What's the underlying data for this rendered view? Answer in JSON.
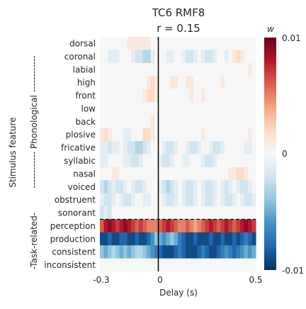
{
  "chart_data": {
    "type": "heatmap",
    "title_line1": "TC6 RMF8",
    "title_line2": "r = 0.15",
    "xlabel": "Delay (s)",
    "ylabel": "Stimulus feature",
    "x_range": [
      -0.3,
      0.5
    ],
    "x_ticks": [
      "-0.3",
      "0",
      "0.5"
    ],
    "group_labels": {
      "phonological": "------------ Phonological ------------",
      "task": "-Task-related-"
    },
    "rows": [
      "dorsal",
      "coronal",
      "labial",
      "high",
      "front",
      "low",
      "back",
      "plosive",
      "fricative",
      "syllabic",
      "nasal",
      "voiced",
      "obstruent",
      "sonorant",
      "perception",
      "production",
      "consistent",
      "inconsistent"
    ],
    "colorbar": {
      "label": "w",
      "max_label": "0.01",
      "zero_label": "0",
      "min_label": "-0.01",
      "range": [
        -0.01,
        0.01
      ],
      "colormap": [
        "#053061",
        "#2166ac",
        "#4393c3",
        "#92c5de",
        "#d1e5f0",
        "#f7f7f7",
        "#fddbc7",
        "#f4a582",
        "#d6604d",
        "#b2182b",
        "#67001f"
      ]
    },
    "vline_at": 0,
    "n_time_bins": 40,
    "values": [
      [
        0,
        0,
        0,
        0,
        0,
        0,
        0,
        0.001,
        0.001,
        0.001,
        0.001,
        0.001,
        0.001,
        0,
        0,
        0,
        0,
        0,
        0,
        0,
        0,
        0,
        0,
        0,
        0,
        0,
        0,
        0,
        0,
        0,
        0,
        0,
        0,
        0,
        0,
        0,
        0,
        0,
        0,
        0
      ],
      [
        0,
        0,
        -0.001,
        -0.001,
        -0.001,
        0,
        0,
        0,
        -0.001,
        -0.002,
        -0.002,
        -0.003,
        -0.003,
        -0.001,
        0,
        0,
        0,
        -0.001,
        -0.001,
        0,
        0,
        -0.001,
        -0.002,
        -0.002,
        -0.001,
        0,
        -0.001,
        -0.002,
        -0.002,
        -0.001,
        0,
        0,
        -0.001,
        0,
        0.001,
        0.002,
        0.001,
        0,
        0,
        0
      ],
      [
        0,
        0,
        0,
        0,
        0,
        0,
        0,
        0,
        0,
        0,
        0,
        0,
        0,
        0,
        0,
        0,
        0,
        0,
        0,
        0,
        0,
        0,
        0,
        0,
        0,
        0,
        0,
        0,
        0,
        0,
        0,
        0,
        0,
        0,
        0,
        0,
        0,
        0,
        0.001,
        0
      ],
      [
        0,
        0,
        0,
        0,
        0,
        0,
        0,
        0,
        0,
        0,
        0,
        0,
        0.001,
        0.002,
        0.001,
        0,
        0,
        0,
        0.001,
        0.001,
        0,
        0,
        0.001,
        0.001,
        0,
        0,
        0,
        0,
        0,
        0,
        0,
        0.001,
        0,
        0,
        0,
        0,
        0,
        0,
        0,
        0
      ],
      [
        0,
        0,
        0,
        0,
        0,
        0,
        0,
        0,
        0,
        0,
        0,
        0.001,
        0.002,
        0.002,
        0.001,
        0,
        0,
        0,
        0,
        0,
        0,
        0,
        0,
        0.001,
        0,
        0,
        0.001,
        0,
        0,
        0,
        0,
        0,
        0,
        0,
        0,
        0,
        0,
        0,
        0,
        0
      ],
      [
        0,
        0,
        0,
        0,
        0,
        0,
        0,
        0,
        0,
        0,
        0,
        0,
        0,
        0,
        0,
        0,
        0,
        0,
        0,
        0,
        0,
        0,
        0,
        0,
        0,
        0,
        0,
        0,
        0,
        0,
        0,
        0,
        0,
        0,
        0,
        0,
        0,
        0,
        0,
        0
      ],
      [
        0,
        0,
        0,
        0,
        0,
        0,
        0,
        0,
        0,
        0,
        0,
        0,
        0,
        0.001,
        0,
        0,
        0,
        0,
        0,
        0,
        0,
        0,
        0,
        0,
        0,
        0,
        0,
        0,
        0,
        0,
        0,
        0,
        0,
        0,
        0,
        0,
        0,
        0,
        0,
        0
      ],
      [
        0.001,
        0.002,
        0.001,
        0,
        0,
        0,
        -0.001,
        -0.001,
        0,
        0,
        0,
        0.002,
        0.002,
        0.001,
        0,
        0,
        0,
        0,
        0,
        0,
        0,
        0,
        0,
        0,
        0,
        0,
        0.001,
        0,
        0,
        0,
        0,
        0,
        0,
        0,
        0,
        0,
        0,
        0,
        0.001,
        0
      ],
      [
        -0.001,
        -0.001,
        -0.002,
        -0.001,
        -0.001,
        0,
        -0.001,
        -0.002,
        -0.002,
        -0.003,
        -0.003,
        -0.002,
        -0.001,
        0,
        0,
        0,
        -0.001,
        -0.002,
        -0.002,
        -0.001,
        0,
        0,
        -0.001,
        -0.002,
        -0.002,
        -0.001,
        0,
        0,
        -0.001,
        -0.002,
        -0.002,
        -0.001,
        0,
        0,
        0,
        0,
        0,
        -0.001,
        -0.001,
        0
      ],
      [
        -0.001,
        -0.001,
        0,
        0,
        0,
        0,
        -0.001,
        -0.001,
        -0.002,
        -0.002,
        -0.001,
        0,
        0,
        0,
        0,
        -0.001,
        -0.002,
        -0.002,
        -0.001,
        0,
        0,
        -0.001,
        -0.001,
        0,
        0,
        0,
        -0.001,
        -0.002,
        -0.002,
        -0.001,
        0,
        0,
        0,
        0,
        0,
        0,
        0,
        0,
        0,
        0
      ],
      [
        0,
        0,
        0,
        0.001,
        0.001,
        0,
        0,
        0,
        0,
        0,
        0,
        0,
        0,
        0,
        0,
        0,
        0,
        0,
        0,
        0,
        0,
        0,
        0,
        0,
        0,
        0,
        0,
        0,
        0,
        0,
        0,
        0,
        0,
        0.001,
        0.001,
        0.002,
        0.002,
        0.001,
        0,
        0
      ],
      [
        -0.002,
        -0.003,
        -0.002,
        -0.001,
        -0.002,
        -0.002,
        -0.001,
        0,
        -0.001,
        -0.002,
        -0.002,
        -0.001,
        0,
        0,
        0,
        -0.001,
        -0.002,
        -0.003,
        -0.002,
        -0.001,
        0,
        -0.001,
        -0.002,
        -0.002,
        -0.001,
        0,
        -0.001,
        -0.002,
        -0.002,
        -0.001,
        0,
        -0.001,
        -0.002,
        -0.001,
        0,
        -0.001,
        -0.002,
        -0.002,
        -0.001,
        0
      ],
      [
        -0.001,
        -0.002,
        -0.002,
        -0.001,
        0,
        -0.001,
        -0.002,
        -0.002,
        -0.001,
        0,
        0,
        -0.001,
        -0.001,
        0,
        0,
        0,
        -0.001,
        -0.002,
        -0.002,
        -0.001,
        0,
        -0.001,
        -0.002,
        -0.002,
        -0.001,
        0,
        -0.001,
        -0.002,
        -0.002,
        -0.001,
        0,
        -0.001,
        -0.002,
        -0.002,
        -0.001,
        0,
        -0.001,
        -0.002,
        -0.002,
        -0.001
      ],
      [
        -0.002,
        -0.001,
        -0.002,
        0,
        0,
        0,
        0,
        0,
        0,
        0,
        0,
        0,
        0,
        0,
        0,
        0,
        0,
        0,
        0,
        0,
        0,
        0,
        0,
        0,
        0,
        0,
        0,
        0,
        0,
        0,
        0,
        0,
        0,
        0,
        0,
        0,
        0,
        0,
        0,
        0
      ],
      [
        0.006,
        0.008,
        0.009,
        0.008,
        0.007,
        0.008,
        0.009,
        0.008,
        0.007,
        0.006,
        0.007,
        0.006,
        0.005,
        0.005,
        0.005,
        0.006,
        0.007,
        0.008,
        0.007,
        0.006,
        0.005,
        0.005,
        0.006,
        0.005,
        0.004,
        0.005,
        0.006,
        0.007,
        0.008,
        0.007,
        0.006,
        0.007,
        0.008,
        0.007,
        0.006,
        0.007,
        0.008,
        0.009,
        0.008,
        0.007
      ],
      [
        -0.009,
        -0.009,
        -0.008,
        -0.009,
        -0.009,
        -0.008,
        -0.008,
        -0.009,
        -0.009,
        -0.008,
        -0.009,
        -0.009,
        -0.008,
        -0.006,
        -0.004,
        -0.005,
        -0.006,
        -0.005,
        -0.004,
        -0.005,
        -0.007,
        -0.008,
        -0.009,
        -0.009,
        -0.008,
        -0.009,
        -0.009,
        -0.009,
        -0.008,
        -0.009,
        -0.009,
        -0.008,
        -0.009,
        -0.009,
        -0.008,
        -0.009,
        -0.008,
        -0.007,
        -0.008,
        -0.009
      ],
      [
        -0.004,
        -0.005,
        -0.004,
        -0.003,
        -0.004,
        -0.005,
        -0.004,
        -0.005,
        -0.004,
        -0.003,
        -0.003,
        -0.004,
        -0.005,
        -0.006,
        -0.007,
        -0.008,
        -0.009,
        -0.009,
        -0.009,
        -0.008,
        -0.007,
        -0.008,
        -0.009,
        -0.009,
        -0.009,
        -0.008,
        -0.007,
        -0.008,
        -0.009,
        -0.009,
        -0.008,
        -0.007,
        -0.006,
        -0.007,
        -0.008,
        -0.007,
        -0.006,
        -0.005,
        -0.006,
        -0.005
      ],
      [
        0,
        0,
        0,
        0,
        0,
        0,
        0,
        0,
        0,
        0,
        0,
        0,
        0,
        0,
        0,
        0,
        0,
        0,
        0,
        0,
        0,
        0,
        0,
        0,
        0,
        0,
        0,
        0,
        0,
        0,
        0,
        0,
        0,
        0,
        0,
        0,
        0,
        0,
        0,
        0
      ]
    ]
  }
}
